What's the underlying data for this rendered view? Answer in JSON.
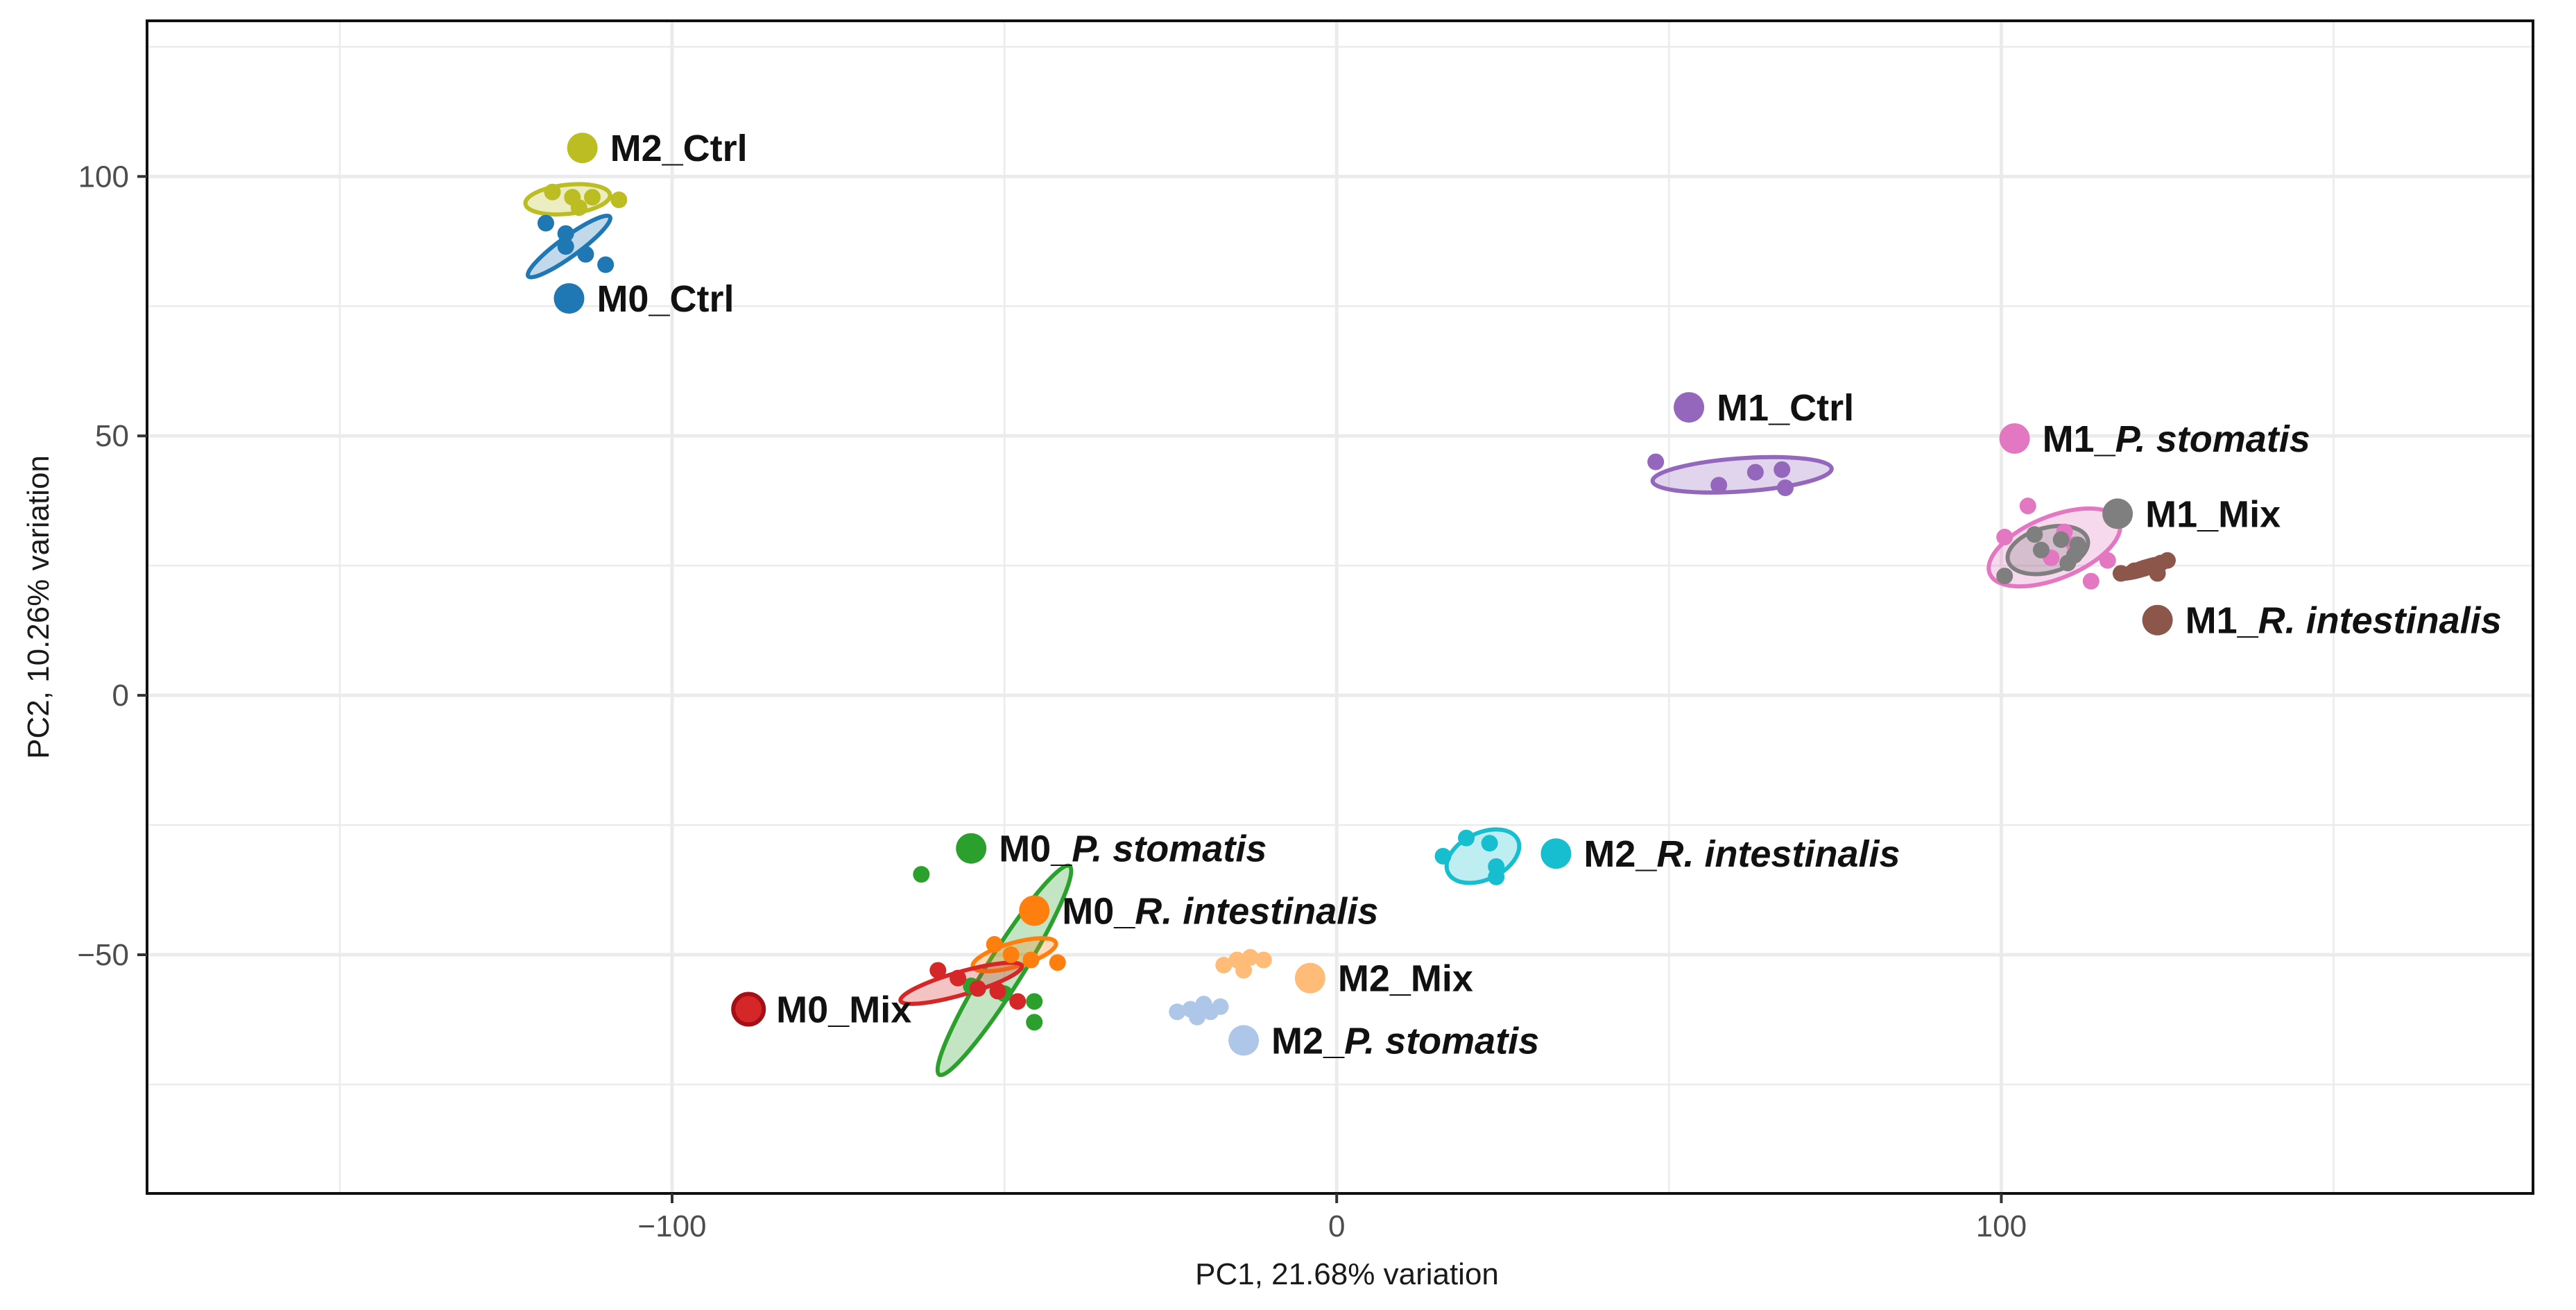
{
  "chart_data": {
    "type": "scatter",
    "title": "",
    "xlabel": "PC1, 21.68% variation",
    "ylabel": "PC2, 10.26% variation",
    "xlim": [
      -179,
      180
    ],
    "ylim": [
      -96,
      130
    ],
    "x_ticks": [
      {
        "value": -100,
        "label": "−100"
      },
      {
        "value": 0,
        "label": "0"
      },
      {
        "value": 100,
        "label": "100"
      }
    ],
    "y_ticks": [
      {
        "value": 100,
        "label": "100"
      },
      {
        "value": 50,
        "label": "50"
      },
      {
        "value": 0,
        "label": "0"
      },
      {
        "value": -50,
        "label": "−50"
      }
    ],
    "grid": true,
    "series": [
      {
        "name": "M2_Ctrl",
        "prefix": "M2_",
        "species": "Ctrl",
        "italic": false,
        "color": "#bcbd22",
        "label_point": [
          -113.5,
          105.5
        ],
        "points": [
          [
            -118,
            97
          ],
          [
            -115,
            96
          ],
          [
            -112,
            96
          ],
          [
            -108,
            95.5
          ],
          [
            -114,
            94
          ]
        ],
        "ellipse": {
          "cx": -115.7,
          "cy": 95.6,
          "rx": 6.4,
          "ry": 2.8,
          "angle": -6
        }
      },
      {
        "name": "M0_Ctrl",
        "prefix": "M0_",
        "species": "Ctrl",
        "italic": false,
        "color": "#1f77b4",
        "label_point": [
          -115.5,
          76.5
        ],
        "points": [
          [
            -119,
            91
          ],
          [
            -116,
            89
          ],
          [
            -116,
            86.5
          ],
          [
            -113,
            85
          ],
          [
            -110,
            83
          ]
        ],
        "ellipse": {
          "cx": -115.5,
          "cy": 86.5,
          "rx": 7.6,
          "ry": 1.9,
          "angle": -36
        }
      },
      {
        "name": "M1_Ctrl",
        "prefix": "M1_",
        "species": "Ctrl",
        "italic": false,
        "color": "#9467bd",
        "label_point": [
          53,
          55.5
        ],
        "points": [
          [
            48,
            45
          ],
          [
            57.5,
            40.5
          ],
          [
            63,
            43
          ],
          [
            67,
            43.5
          ],
          [
            67.5,
            40
          ]
        ],
        "ellipse": {
          "cx": 61,
          "cy": 42.5,
          "rx": 13.5,
          "ry": 3.2,
          "angle": -4
        }
      },
      {
        "name": "M1_P. stomatis",
        "prefix": "M1_",
        "species": "P. stomatis",
        "italic": true,
        "color": "#e377c2",
        "label_point": [
          102,
          49.5
        ],
        "points": [
          [
            100.5,
            30.5
          ],
          [
            104,
            36.5
          ],
          [
            107.5,
            26.5
          ],
          [
            111,
            29
          ],
          [
            113.5,
            22
          ],
          [
            116,
            26
          ],
          [
            109.5,
            31.5
          ]
        ],
        "ellipse": {
          "cx": 108,
          "cy": 28.5,
          "rx": 10.5,
          "ry": 6,
          "angle": -22
        }
      },
      {
        "name": "M1_Mix",
        "prefix": "M1_",
        "species": "Mix",
        "italic": false,
        "color": "#7f7f7f",
        "label_point": [
          117.5,
          35
        ],
        "points": [
          [
            100.5,
            23
          ],
          [
            105,
            31
          ],
          [
            109,
            30
          ],
          [
            110,
            25.5
          ],
          [
            111,
            27
          ],
          [
            111.5,
            29
          ],
          [
            106,
            28
          ]
        ],
        "ellipse": {
          "cx": 107,
          "cy": 28,
          "rx": 6.2,
          "ry": 4.3,
          "angle": -15
        }
      },
      {
        "name": "M1_R. intestinalis",
        "prefix": "M1_",
        "species": "R. intestinalis",
        "italic": true,
        "color": "#8c564b",
        "label_point": [
          123.5,
          14.5
        ],
        "points": [
          [
            118,
            23.5
          ],
          [
            120,
            24
          ],
          [
            121.5,
            24.5
          ],
          [
            123,
            25
          ],
          [
            124,
            25.5
          ],
          [
            125,
            26
          ],
          [
            123.5,
            23.5
          ]
        ],
        "ellipse": {
          "cx": 121.5,
          "cy": 24.5,
          "rx": 4.2,
          "ry": 1.2,
          "angle": -18
        }
      },
      {
        "name": "M0_P. stomatis",
        "prefix": "M0_",
        "species": "P. stomatis",
        "italic": true,
        "color": "#2ca02c",
        "label_point": [
          -55,
          -29.5
        ],
        "points": [
          [
            -62.5,
            -34.5
          ],
          [
            -55,
            -56
          ],
          [
            -50,
            -57.5
          ],
          [
            -45.5,
            -59
          ],
          [
            -45.5,
            -63
          ]
        ],
        "ellipse": {
          "cx": -50,
          "cy": -53,
          "rx": 18.5,
          "ry": 3.4,
          "angle": -58
        }
      },
      {
        "name": "M0_R. intestinalis",
        "prefix": "M0_",
        "species": "R. intestinalis",
        "italic": true,
        "color": "#ff7f0e",
        "label_point": [
          -45.5,
          -41.5
        ],
        "points": [
          [
            -51.5,
            -48
          ],
          [
            -49,
            -50
          ],
          [
            -46,
            -51
          ],
          [
            -42,
            -51.5
          ]
        ],
        "ellipse": {
          "cx": -48.5,
          "cy": -50,
          "rx": 6.5,
          "ry": 2.3,
          "angle": -16
        }
      },
      {
        "name": "M0_Mix",
        "prefix": "M0_",
        "species": "Mix",
        "italic": false,
        "color": "#d62728",
        "label_point": [
          -88.5,
          -60.5
        ],
        "points": [
          [
            -60,
            -53
          ],
          [
            -57,
            -54.5
          ],
          [
            -54,
            -56.5
          ],
          [
            -51,
            -57
          ],
          [
            -48,
            -59
          ]
        ],
        "ellipse": {
          "cx": -56.5,
          "cy": -55.5,
          "rx": 9.5,
          "ry": 2.2,
          "angle": -16
        }
      },
      {
        "name": "M2_R. intestinalis",
        "prefix": "M2_",
        "species": "R. intestinalis",
        "italic": true,
        "color": "#17becf",
        "label_point": [
          33,
          -30.5
        ],
        "points": [
          [
            16,
            -31
          ],
          [
            19.5,
            -27.5
          ],
          [
            23,
            -28.5
          ],
          [
            24,
            -33
          ],
          [
            24,
            -35
          ]
        ],
        "ellipse": {
          "cx": 22,
          "cy": -31,
          "rx": 5.8,
          "ry": 4.5,
          "angle": -25
        }
      },
      {
        "name": "M2_Mix",
        "prefix": "M2_",
        "species": "Mix",
        "italic": false,
        "color": "#ffbb78",
        "label_point": [
          -4,
          -54.5
        ],
        "points": [
          [
            -17,
            -52
          ],
          [
            -15,
            -51
          ],
          [
            -13,
            -50.5
          ],
          [
            -11,
            -51
          ],
          [
            -14,
            -53
          ]
        ],
        "ellipse": null
      },
      {
        "name": "M2_P. stomatis",
        "prefix": "M2_",
        "species": "P. stomatis",
        "italic": true,
        "color": "#aec7e8",
        "label_point": [
          -14,
          -66.5
        ],
        "points": [
          [
            -24,
            -61
          ],
          [
            -22,
            -60.5
          ],
          [
            -20,
            -59.5
          ],
          [
            -19,
            -61
          ],
          [
            -17.5,
            -60
          ],
          [
            -21,
            -62
          ]
        ],
        "ellipse": null
      }
    ]
  }
}
